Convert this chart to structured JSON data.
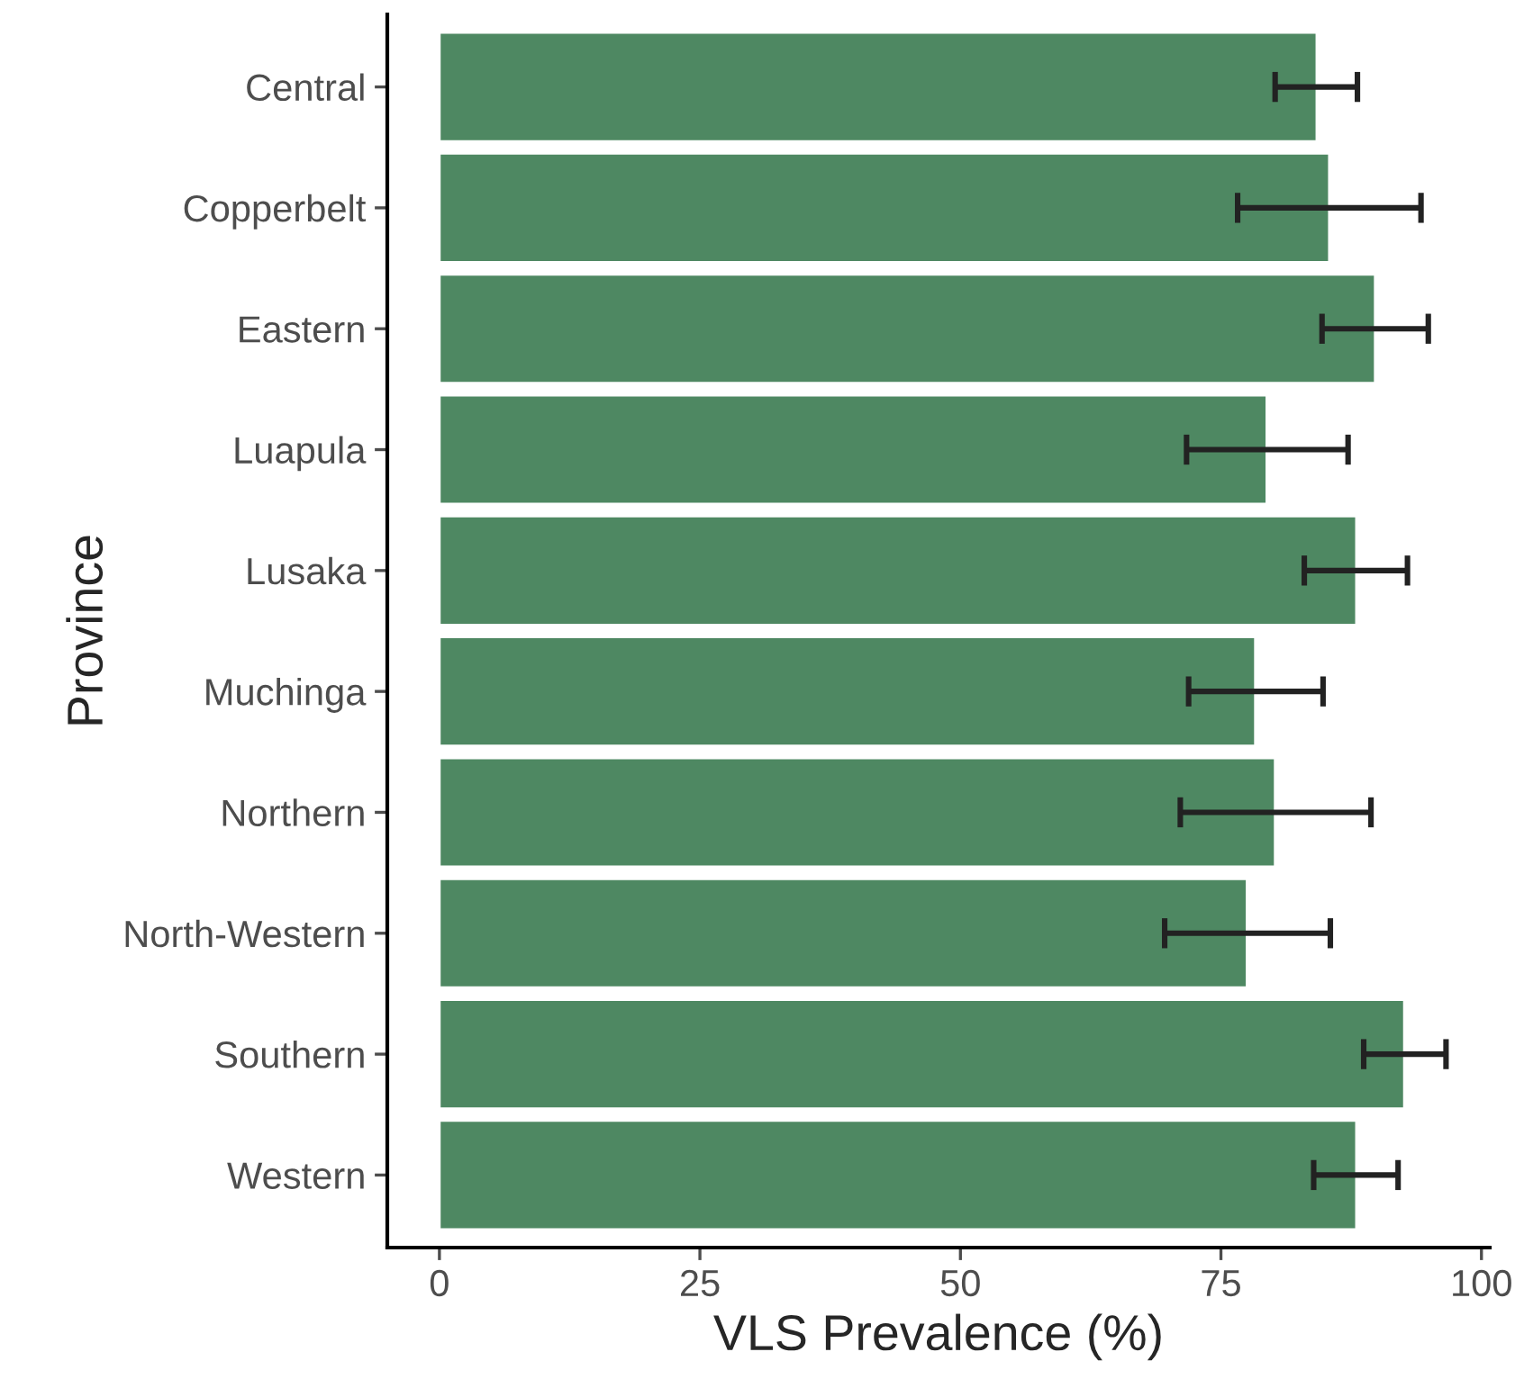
{
  "chart_data": {
    "type": "bar",
    "orientation": "horizontal",
    "xlabel": "VLS Prevalence (%)",
    "ylabel": "Province",
    "categories": [
      "Central",
      "Copperbelt",
      "Eastern",
      "Luapula",
      "Lusaka",
      "Muchinga",
      "Northern",
      "North-Western",
      "Southern",
      "Western"
    ],
    "values": [
      84.2,
      85.4,
      89.8,
      79.4,
      88.0,
      78.3,
      80.2,
      77.5,
      92.6,
      88.0
    ],
    "errors": [
      [
        80.2,
        88.1
      ],
      [
        76.6,
        94.2
      ],
      [
        84.7,
        94.9
      ],
      [
        71.7,
        87.2
      ],
      [
        83.0,
        92.9
      ],
      [
        71.9,
        84.8
      ],
      [
        71.1,
        89.4
      ],
      [
        69.6,
        85.5
      ],
      [
        88.7,
        96.6
      ],
      [
        83.9,
        92.0
      ]
    ],
    "color": "#4e8862",
    "xlim": [
      -5,
      100.8
    ],
    "xticks": [
      0,
      25,
      50,
      75,
      100
    ],
    "grid": false,
    "legend": false
  }
}
